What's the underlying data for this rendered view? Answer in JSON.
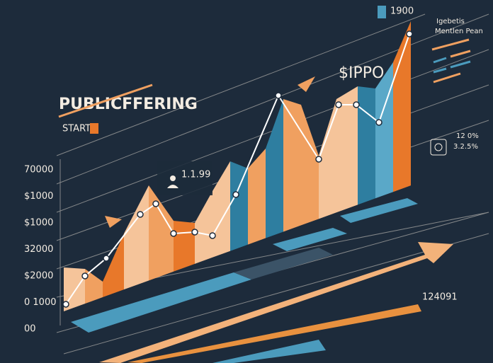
{
  "header": {
    "title": "PUBLICFFERING",
    "start": "START",
    "badge": "1900",
    "highlight": "$IPPO"
  },
  "callout": "1.1.99",
  "legend": {
    "line1": "Igebetis",
    "line2": "Mentlen Pean"
  },
  "stats": {
    "line1": "12 0%",
    "line2": "3.2.5%"
  },
  "footer_number": "124091",
  "axis_labels": [
    "70000",
    "$1000",
    "$1000",
    "32000",
    "$2000",
    "0 1000",
    "00"
  ]
}
